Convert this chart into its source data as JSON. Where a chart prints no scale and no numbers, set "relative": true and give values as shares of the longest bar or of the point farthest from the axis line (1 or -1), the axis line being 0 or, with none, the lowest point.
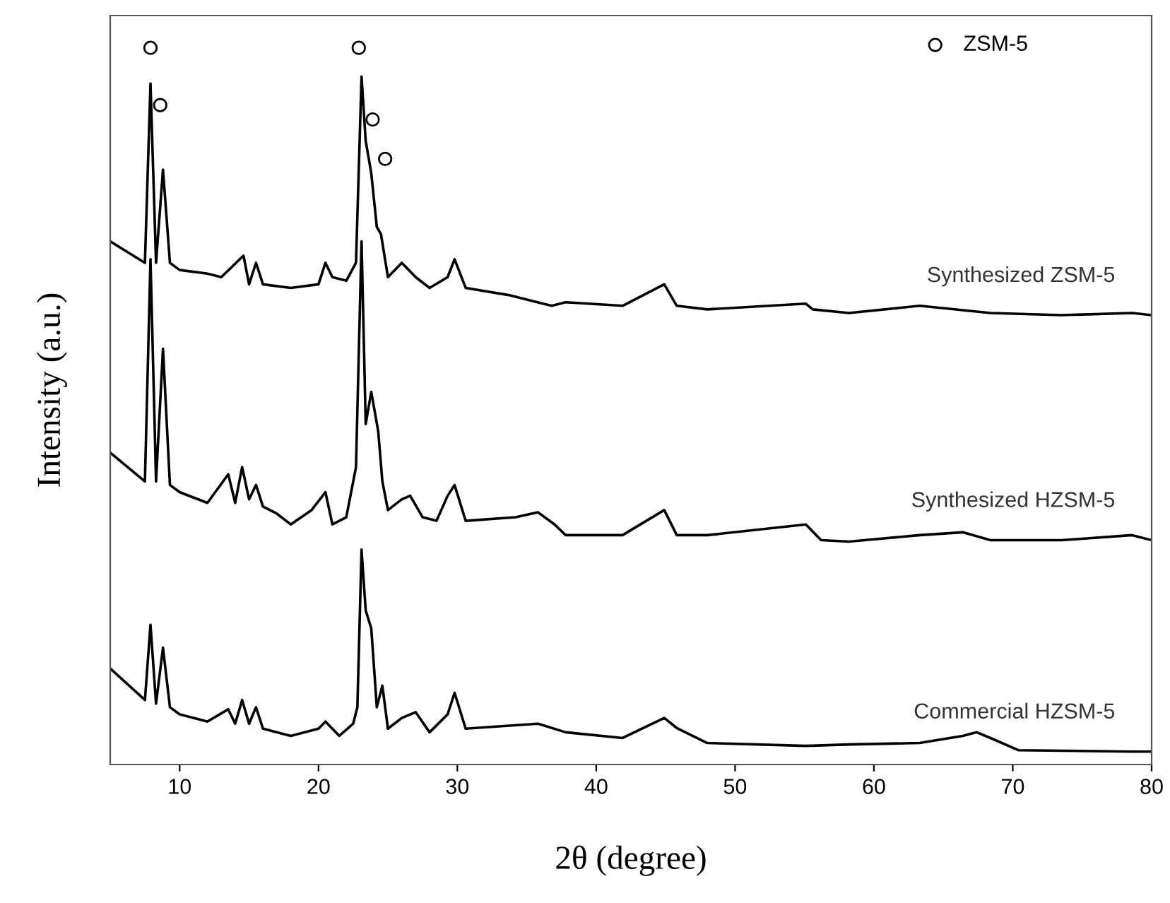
{
  "chart_data": {
    "type": "line",
    "xlabel": "2θ (degree)",
    "ylabel": "Intensity (a.u.)",
    "relative": true,
    "xlim": [
      5,
      80
    ],
    "xticks": [
      10,
      20,
      30,
      40,
      50,
      60,
      70,
      80
    ],
    "legend": "top right",
    "grid": false,
    "line_style": "solid",
    "series": [
      {
        "name": "Synthesized ZSM-5",
        "color": "#000000",
        "marker": "none",
        "x": [
          5,
          7.5,
          7.9,
          8.3,
          8.8,
          9.3,
          10,
          12,
          13,
          14.6,
          15,
          15.5,
          16,
          18,
          20,
          20.5,
          21,
          22,
          22.7,
          23.1,
          23.4,
          23.8,
          24.2,
          24.5,
          25,
          26,
          27,
          28,
          29.3,
          29.8,
          30.6,
          33.7,
          36.8,
          37.8,
          41.9,
          44.9,
          45.8,
          48.0,
          55.1,
          55.6,
          58.2,
          63.3,
          68.4,
          73.5,
          78.6,
          80
        ],
        "values": [
          0.73,
          0.7,
          0.95,
          0.7,
          0.83,
          0.7,
          0.69,
          0.685,
          0.68,
          0.71,
          0.67,
          0.7,
          0.67,
          0.665,
          0.67,
          0.7,
          0.68,
          0.675,
          0.7,
          0.96,
          0.87,
          0.825,
          0.75,
          0.74,
          0.68,
          0.7,
          0.68,
          0.665,
          0.68,
          0.705,
          0.665,
          0.655,
          0.64,
          0.645,
          0.64,
          0.67,
          0.64,
          0.635,
          0.643,
          0.635,
          0.63,
          0.64,
          0.63,
          0.627,
          0.63,
          0.627
        ]
      },
      {
        "name": "Synthesized HZSM-5",
        "color": "#000000",
        "marker": "none",
        "x": [
          5,
          7.5,
          7.9,
          8.3,
          8.8,
          9.3,
          10,
          12,
          13.5,
          14,
          14.5,
          15,
          15.5,
          16,
          17,
          18,
          19.5,
          20.5,
          21,
          22,
          22.7,
          23.1,
          23.4,
          23.8,
          24.3,
          24.6,
          25,
          26,
          26.6,
          27.5,
          28.5,
          29.3,
          29.8,
          30.6,
          34.2,
          35.8,
          37.0,
          37.8,
          41.9,
          44.9,
          45.8,
          48.0,
          55.1,
          56.2,
          58.2,
          63.3,
          66.4,
          68.4,
          73.5,
          78.6,
          80
        ],
        "values": [
          0.435,
          0.395,
          0.705,
          0.395,
          0.58,
          0.39,
          0.38,
          0.365,
          0.405,
          0.365,
          0.415,
          0.37,
          0.39,
          0.36,
          0.35,
          0.335,
          0.355,
          0.38,
          0.335,
          0.345,
          0.415,
          0.73,
          0.475,
          0.52,
          0.465,
          0.395,
          0.355,
          0.37,
          0.375,
          0.345,
          0.34,
          0.375,
          0.39,
          0.34,
          0.345,
          0.352,
          0.335,
          0.32,
          0.32,
          0.355,
          0.32,
          0.32,
          0.335,
          0.313,
          0.311,
          0.32,
          0.324,
          0.313,
          0.313,
          0.32,
          0.313
        ]
      },
      {
        "name": "Commercial HZSM-5",
        "color": "#000000",
        "marker": "none",
        "x": [
          5,
          7.5,
          7.9,
          8.3,
          8.8,
          9.3,
          10,
          12,
          13.5,
          14,
          14.5,
          15,
          15.5,
          16,
          18,
          20,
          20.5,
          21.5,
          22.5,
          22.8,
          23.1,
          23.4,
          23.8,
          24.2,
          24.6,
          25,
          26,
          27,
          28,
          29.3,
          29.8,
          30.6,
          35.8,
          37.8,
          41.9,
          44.9,
          45.8,
          48.0,
          55.1,
          58.2,
          63.3,
          66.4,
          67.4,
          68.4,
          70.4,
          78.6,
          80
        ],
        "values": [
          0.134,
          0.09,
          0.195,
          0.085,
          0.163,
          0.08,
          0.07,
          0.06,
          0.077,
          0.057,
          0.09,
          0.057,
          0.08,
          0.05,
          0.04,
          0.05,
          0.06,
          0.04,
          0.057,
          0.08,
          0.3,
          0.215,
          0.19,
          0.08,
          0.11,
          0.05,
          0.065,
          0.073,
          0.045,
          0.07,
          0.1,
          0.05,
          0.057,
          0.045,
          0.037,
          0.065,
          0.051,
          0.03,
          0.026,
          0.028,
          0.03,
          0.04,
          0.045,
          0.037,
          0.02,
          0.018,
          0.018
        ]
      },
      {
        "name": "ZSM-5",
        "type": "scatter",
        "color": "#000000",
        "marker": "circle",
        "x": [
          7.9,
          8.6,
          22.9,
          23.9,
          24.8
        ],
        "values": [
          1.0,
          0.92,
          1.0,
          0.9,
          0.845
        ]
      }
    ]
  }
}
